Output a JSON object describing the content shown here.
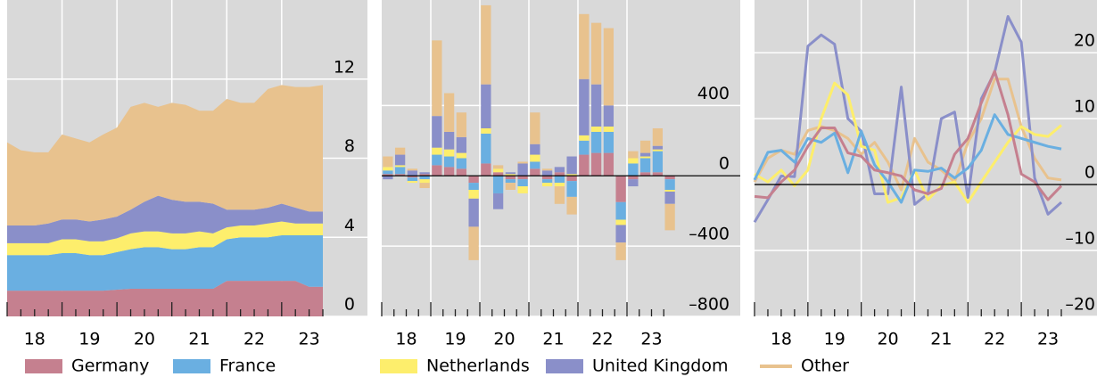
{
  "chart_data": [
    {
      "type": "area",
      "stacked": true,
      "grid": true,
      "x": [
        18,
        18.25,
        18.5,
        18.75,
        19,
        19.25,
        19.5,
        19.75,
        20,
        20.25,
        20.5,
        20.75,
        21,
        21.25,
        21.5,
        21.75,
        22,
        22.25,
        22.5,
        22.75,
        23,
        23.25,
        23.5,
        23.75
      ],
      "xlim": [
        18,
        23.75
      ],
      "xticks": [
        {
          "value": 18.5,
          "label": "18"
        },
        {
          "value": 19.5,
          "label": "19"
        },
        {
          "value": 20.5,
          "label": "20"
        },
        {
          "value": 21.5,
          "label": "21"
        },
        {
          "value": 22.5,
          "label": "22"
        },
        {
          "value": 23.5,
          "label": "23"
        }
      ],
      "ylim": [
        0,
        16
      ],
      "yticks": [
        0,
        4,
        8,
        12
      ],
      "series": [
        {
          "name": "Germany",
          "color": "#c5808f",
          "values": [
            1.3,
            1.3,
            1.3,
            1.3,
            1.3,
            1.3,
            1.3,
            1.3,
            1.35,
            1.4,
            1.4,
            1.4,
            1.4,
            1.4,
            1.4,
            1.4,
            1.8,
            1.8,
            1.8,
            1.8,
            1.8,
            1.8,
            1.5,
            1.5
          ]
        },
        {
          "name": "France",
          "color": "#6aafe1",
          "values": [
            1.8,
            1.8,
            1.8,
            1.8,
            1.9,
            1.9,
            1.8,
            1.8,
            1.9,
            2.0,
            2.1,
            2.1,
            2.0,
            2.0,
            2.1,
            2.1,
            2.1,
            2.2,
            2.2,
            2.2,
            2.3,
            2.3,
            2.6,
            2.6
          ]
        },
        {
          "name": "Netherlands",
          "color": "#fdee6c",
          "values": [
            0.6,
            0.6,
            0.6,
            0.6,
            0.7,
            0.7,
            0.7,
            0.7,
            0.7,
            0.8,
            0.8,
            0.8,
            0.8,
            0.8,
            0.8,
            0.7,
            0.6,
            0.6,
            0.6,
            0.7,
            0.7,
            0.6,
            0.6,
            0.6
          ]
        },
        {
          "name": "United Kingdom",
          "color": "#8a8fc9",
          "values": [
            0.9,
            0.9,
            0.9,
            1.0,
            1.0,
            1.0,
            1.0,
            1.1,
            1.1,
            1.2,
            1.5,
            1.8,
            1.7,
            1.6,
            1.5,
            1.5,
            0.9,
            0.8,
            0.8,
            0.8,
            0.9,
            0.8,
            0.6,
            0.6
          ]
        },
        {
          "name": "Other",
          "color": "#e8c28e",
          "values": [
            4.2,
            3.8,
            3.7,
            3.6,
            4.3,
            4.1,
            4.0,
            4.3,
            4.5,
            5.2,
            5.0,
            4.5,
            4.9,
            4.9,
            4.6,
            4.7,
            5.6,
            5.4,
            5.4,
            6.0,
            6.0,
            6.1,
            6.3,
            6.4
          ]
        }
      ]
    },
    {
      "type": "bar",
      "stacked": true,
      "grid": true,
      "x": [
        18,
        18.25,
        18.5,
        18.75,
        19,
        19.25,
        19.5,
        19.75,
        20,
        20.25,
        20.5,
        20.75,
        21,
        21.25,
        21.5,
        21.75,
        22,
        22.25,
        22.5,
        22.75,
        23,
        23.25,
        23.5,
        23.75
      ],
      "xlim": [
        18,
        24
      ],
      "xticks": [
        {
          "value": 18.5,
          "label": "18"
        },
        {
          "value": 19.5,
          "label": "19"
        },
        {
          "value": 20.5,
          "label": "20"
        },
        {
          "value": 21.5,
          "label": "21"
        },
        {
          "value": 22.5,
          "label": "22"
        },
        {
          "value": 23.5,
          "label": "23"
        }
      ],
      "ylim": [
        -800,
        1000
      ],
      "yticks": [
        {
          "value": -800,
          "label": "–800"
        },
        {
          "value": -400,
          "label": "–400"
        },
        0,
        400
      ],
      "series": [
        {
          "name": "Germany",
          "color": "#c5808f",
          "values": [
            10,
            10,
            -10,
            10,
            60,
            50,
            40,
            -40,
            70,
            20,
            -20,
            -20,
            40,
            -20,
            20,
            -30,
            120,
            130,
            130,
            -150,
            -20,
            20,
            20,
            -20
          ]
        },
        {
          "name": "France",
          "color": "#6aafe1",
          "values": [
            20,
            40,
            -20,
            -20,
            60,
            60,
            60,
            -40,
            170,
            -100,
            -20,
            -40,
            40,
            -20,
            -40,
            -90,
            80,
            120,
            120,
            -100,
            70,
            80,
            120,
            -60
          ]
        },
        {
          "name": "Netherlands",
          "color": "#fdee6c",
          "values": [
            20,
            10,
            -10,
            -20,
            40,
            40,
            30,
            -50,
            30,
            20,
            10,
            -40,
            40,
            -20,
            -20,
            10,
            30,
            30,
            30,
            -30,
            30,
            10,
            10,
            -10
          ]
        },
        {
          "name": "United Kingdom",
          "color": "#8a8fc9",
          "values": [
            -20,
            60,
            30,
            10,
            180,
            100,
            90,
            -160,
            250,
            -90,
            10,
            70,
            60,
            30,
            30,
            100,
            320,
            240,
            120,
            -100,
            -40,
            20,
            20,
            -70
          ]
        },
        {
          "name": "Other",
          "color": "#e8c28e",
          "values": [
            60,
            40,
            10,
            -30,
            430,
            220,
            140,
            -190,
            450,
            20,
            -40,
            10,
            180,
            10,
            -100,
            -100,
            370,
            350,
            440,
            -100,
            40,
            70,
            100,
            -150
          ]
        }
      ]
    },
    {
      "type": "line",
      "grid": true,
      "x": [
        18,
        18.25,
        18.5,
        18.75,
        19,
        19.25,
        19.5,
        19.75,
        20,
        20.25,
        20.5,
        20.75,
        21,
        21.25,
        21.5,
        21.75,
        22,
        22.25,
        22.5,
        22.75,
        23,
        23.25,
        23.5,
        23.75
      ],
      "xlim": [
        18,
        23.75
      ],
      "xticks": [
        {
          "value": 18.5,
          "label": "18"
        },
        {
          "value": 19.5,
          "label": "19"
        },
        {
          "value": 20.5,
          "label": "20"
        },
        {
          "value": 21.5,
          "label": "21"
        },
        {
          "value": 22.5,
          "label": "22"
        },
        {
          "value": 23.5,
          "label": "23"
        }
      ],
      "ylim": [
        -20,
        28
      ],
      "yticks": [
        {
          "value": -20,
          "label": "–20"
        },
        {
          "value": -10,
          "label": "–10"
        },
        0,
        10,
        20
      ],
      "series": [
        {
          "name": "Germany",
          "color": "#c5808f",
          "values": [
            -1.8,
            -2,
            0.4,
            2.2,
            5.8,
            8.6,
            8.6,
            4.8,
            4.3,
            2.2,
            1.8,
            1.3,
            -0.8,
            -1.4,
            -0.6,
            4.6,
            7,
            12.4,
            17.2,
            10.6,
            1.6,
            0.4,
            -2.3,
            -0.2
          ]
        },
        {
          "name": "France",
          "color": "#6aafe1",
          "values": [
            0.7,
            4.9,
            5.2,
            3.4,
            7,
            6.4,
            7.8,
            1.8,
            8.1,
            3,
            0.4,
            -2.7,
            2.2,
            2.0,
            2.5,
            1,
            2.5,
            5.2,
            10.6,
            7.6,
            7,
            6.4,
            5.8,
            5.4
          ]
        },
        {
          "name": "Netherlands",
          "color": "#fdee6c",
          "values": [
            1.6,
            0.4,
            2.2,
            -0.2,
            2.2,
            10,
            15.4,
            13.6,
            5.8,
            5.2,
            -2.7,
            -2,
            2.2,
            -2.3,
            -0.2,
            0.4,
            -2.7,
            0.4,
            3.4,
            6.4,
            8.8,
            7.6,
            7.3,
            9
          ]
        },
        {
          "name": "United Kingdom",
          "color": "#8a8fc9",
          "values": [
            -5.7,
            -2.3,
            1.3,
            1.2,
            21,
            22.7,
            21.3,
            10,
            8.1,
            -1.4,
            -1.4,
            14.8,
            -3,
            -1.4,
            10,
            11,
            -2,
            13,
            17,
            25.5,
            21.6,
            1,
            -4.5,
            -2.7
          ]
        },
        {
          "name": "Other",
          "color": "#e8c28e",
          "values": [
            0.4,
            4,
            5.2,
            4.6,
            8.2,
            8.8,
            8.2,
            7,
            4.6,
            6.4,
            3.4,
            -0.8,
            7,
            3.4,
            2.2,
            0.4,
            6.4,
            10,
            16,
            16,
            8.8,
            4,
            1,
            0.7
          ]
        }
      ]
    }
  ]
}
